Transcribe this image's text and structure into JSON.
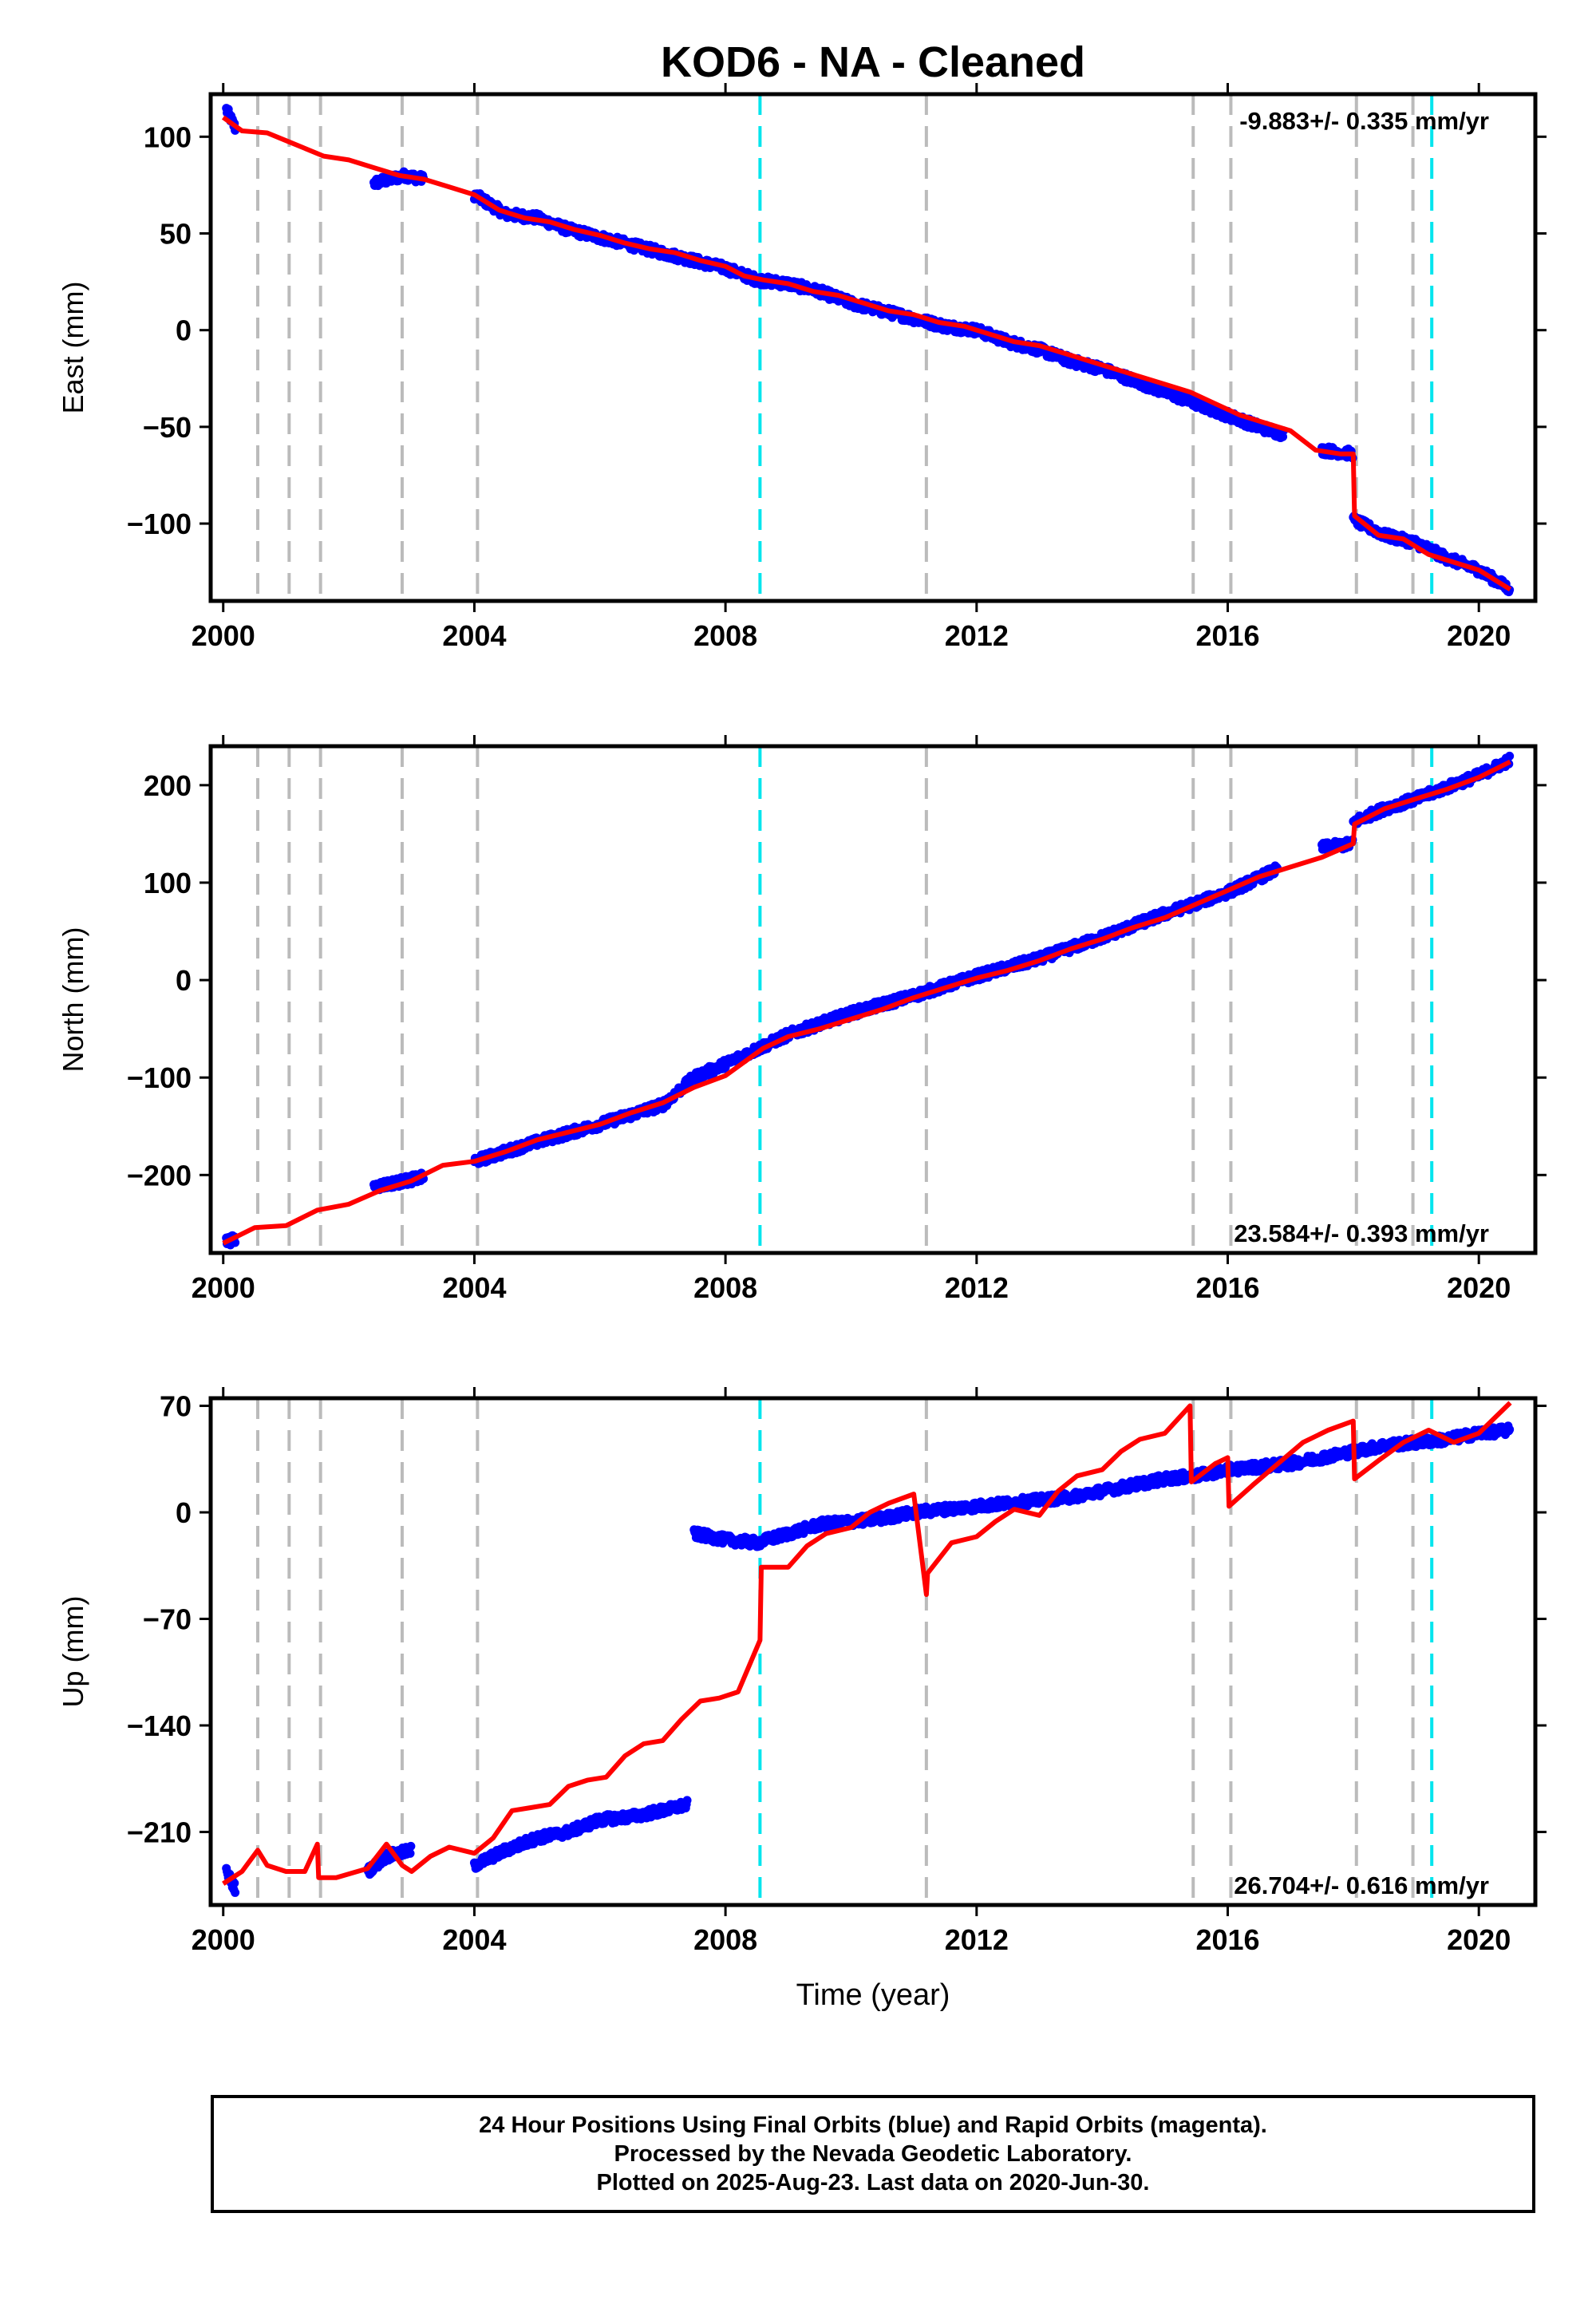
{
  "figure": {
    "title": "KOD6  - NA - Cleaned",
    "xlabel": "Time (year)"
  },
  "chart_data": [
    {
      "type": "scatter",
      "panel": "east",
      "ylabel": "East (mm)",
      "rate_label": "-9.883+/- 0.335 mm/yr",
      "xlim": [
        1999.8,
        2020.9
      ],
      "ylim": [
        -140,
        122
      ],
      "yticks": [
        -100,
        -50,
        0,
        50,
        100
      ],
      "ytick_labels": [
        "−100",
        "−50",
        "0",
        "50",
        "100"
      ],
      "xticks": [
        2000,
        2004,
        2008,
        2012,
        2016,
        2020
      ],
      "xtick_labels": [
        "2000",
        "2004",
        "2008",
        "2012",
        "2016",
        "2020"
      ],
      "series": [
        {
          "role": "observed",
          "color": "#0000ff",
          "segments": [
            {
              "x": [
                2000.05,
                2000.2
              ],
              "y": [
                114,
                104
              ]
            },
            {
              "x": [
                2002.4,
                2002.9,
                2003.2
              ],
              "y": [
                76,
                80,
                78
              ]
            },
            {
              "x": [
                2004.0,
                2004.5,
                2005.0,
                2005.5,
                2006.0,
                2006.5,
                2007.0,
                2007.5,
                2008.0,
                2008.5,
                2009.0,
                2009.5,
                2010.0,
                2010.5,
                2011.0,
                2011.5,
                2012.0,
                2012.5,
                2013.0,
                2013.5,
                2014.0,
                2014.5,
                2015.0,
                2015.5,
                2016.0,
                2016.5,
                2016.9
              ],
              "y": [
                70,
                60,
                58,
                52,
                48,
                44,
                40,
                36,
                32,
                26,
                24,
                20,
                14,
                10,
                6,
                2,
                0,
                -6,
                -10,
                -16,
                -20,
                -26,
                -32,
                -38,
                -44,
                -50,
                -54
              ]
            },
            {
              "x": [
                2017.5,
                2018.0
              ],
              "y": [
                -62,
                -64
              ]
            },
            {
              "x": [
                2018.0,
                2018.5,
                2019.0,
                2019.5,
                2020.0,
                2020.5
              ],
              "y": [
                -98,
                -106,
                -110,
                -118,
                -124,
                -134
              ]
            }
          ]
        },
        {
          "role": "model",
          "color": "#ff0000",
          "x": [
            2000.0,
            2000.3,
            2000.7,
            2001.0,
            2001.3,
            2001.6,
            2002.0,
            2002.4,
            2002.8,
            2003.2,
            2003.6,
            2004.0,
            2004.4,
            2004.8,
            2005.2,
            2005.6,
            2006.0,
            2006.4,
            2006.8,
            2007.2,
            2007.6,
            2008.0,
            2008.3,
            2008.6,
            2009.0,
            2009.4,
            2009.8,
            2010.2,
            2010.6,
            2011.0,
            2011.4,
            2011.8,
            2012.2,
            2012.6,
            2013.0,
            2013.4,
            2013.8,
            2014.2,
            2014.6,
            2015.0,
            2015.4,
            2015.8,
            2016.2,
            2016.6,
            2017.0,
            2017.4,
            2017.8,
            2018.0,
            2018.02,
            2018.4,
            2018.8,
            2019.2,
            2019.6,
            2020.0,
            2020.5
          ],
          "y": [
            110,
            103,
            102,
            98,
            94,
            90,
            88,
            84,
            80,
            78,
            74,
            70,
            62,
            58,
            56,
            52,
            49,
            45,
            42,
            40,
            36,
            33,
            28,
            26,
            24,
            20,
            18,
            14,
            10,
            8,
            4,
            2,
            -2,
            -6,
            -8,
            -12,
            -16,
            -20,
            -24,
            -28,
            -32,
            -38,
            -44,
            -48,
            -52,
            -62,
            -64,
            -64,
            -96,
            -106,
            -108,
            -116,
            -120,
            -124,
            -134
          ]
        }
      ]
    },
    {
      "type": "scatter",
      "panel": "north",
      "ylabel": "North (mm)",
      "rate_label": "23.584+/- 0.393 mm/yr",
      "xlim": [
        1999.8,
        2020.9
      ],
      "ylim": [
        -280,
        240
      ],
      "yticks": [
        -200,
        -100,
        0,
        100,
        200
      ],
      "ytick_labels": [
        "−200",
        "−100",
        "0",
        "100",
        "200"
      ],
      "xticks": [
        2000,
        2004,
        2008,
        2012,
        2016,
        2020
      ],
      "xtick_labels": [
        "2000",
        "2004",
        "2008",
        "2012",
        "2016",
        "2020"
      ],
      "series": [
        {
          "role": "observed",
          "color": "#0000ff",
          "segments": [
            {
              "x": [
                2000.05,
                2000.2
              ],
              "y": [
                -268,
                -266
              ]
            },
            {
              "x": [
                2002.4,
                2002.9,
                2003.2
              ],
              "y": [
                -212,
                -206,
                -202
              ]
            },
            {
              "x": [
                2004.0,
                2005.0,
                2006.0,
                2007.0,
                2007.5,
                2008.0,
                2009.0,
                2010.0,
                2011.0,
                2012.0,
                2013.0,
                2014.0,
                2015.0,
                2016.0,
                2016.8
              ],
              "y": [
                -186,
                -166,
                -148,
                -128,
                -100,
                -86,
                -56,
                -34,
                -16,
                4,
                22,
                44,
                68,
                90,
                114
              ]
            },
            {
              "x": [
                2017.5,
                2018.0
              ],
              "y": [
                136,
                140
              ]
            },
            {
              "x": [
                2018.0,
                2018.5,
                2019.0,
                2019.5,
                2020.0,
                2020.5
              ],
              "y": [
                162,
                176,
                186,
                198,
                210,
                226
              ]
            }
          ]
        },
        {
          "role": "model",
          "color": "#ff0000",
          "x": [
            2000.0,
            2000.5,
            2001.0,
            2001.5,
            2002.0,
            2002.5,
            2003.0,
            2003.5,
            2004.0,
            2004.5,
            2005.0,
            2005.5,
            2006.0,
            2006.5,
            2007.0,
            2007.5,
            2008.0,
            2008.6,
            2009.0,
            2009.5,
            2010.0,
            2010.5,
            2011.0,
            2011.5,
            2012.0,
            2012.5,
            2013.0,
            2013.5,
            2014.0,
            2014.5,
            2015.0,
            2015.5,
            2016.0,
            2016.5,
            2017.0,
            2017.5,
            2018.0,
            2018.02,
            2018.5,
            2019.0,
            2019.5,
            2020.0,
            2020.5
          ],
          "y": [
            -270,
            -254,
            -252,
            -236,
            -230,
            -216,
            -206,
            -190,
            -186,
            -176,
            -164,
            -156,
            -148,
            -136,
            -126,
            -110,
            -98,
            -70,
            -58,
            -50,
            -40,
            -30,
            -18,
            -8,
            2,
            10,
            20,
            32,
            42,
            54,
            64,
            78,
            92,
            106,
            116,
            126,
            140,
            160,
            176,
            186,
            196,
            208,
            224
          ]
        }
      ]
    },
    {
      "type": "scatter",
      "panel": "up",
      "ylabel": "Up (mm)",
      "rate_label": "26.704+/- 0.616 mm/yr",
      "xlim": [
        1999.8,
        2020.9
      ],
      "ylim": [
        -258,
        75
      ],
      "yticks": [
        -210,
        -140,
        -70,
        0,
        70
      ],
      "ytick_labels": [
        "−210",
        "−140",
        "−70",
        "0",
        "70"
      ],
      "xticks": [
        2000,
        2004,
        2008,
        2012,
        2016,
        2020
      ],
      "xtick_labels": [
        "2000",
        "2004",
        "2008",
        "2012",
        "2016",
        "2020"
      ],
      "series": [
        {
          "role": "observed",
          "color": "#0000ff",
          "segments": [
            {
              "x": [
                2000.05,
                2000.2
              ],
              "y": [
                -236,
                -248
              ]
            },
            {
              "x": [
                2002.3,
                2002.6,
                2003.0
              ],
              "y": [
                -236,
                -226,
                -222
              ]
            },
            {
              "x": [
                2004.0,
                2004.5,
                2005.0,
                2005.5,
                2006.0,
                2006.5,
                2007.0,
                2007.4
              ],
              "y": [
                -232,
                -222,
                -214,
                -210,
                -202,
                -200,
                -196,
                -192
              ]
            },
            {
              "x": [
                2007.5,
                2008.0,
                2008.5,
                2009.0,
                2009.5,
                2010.0,
                2010.5,
                2011.0,
                2011.5,
                2012.0,
                2012.5,
                2013.0,
                2013.5,
                2014.0,
                2014.5,
                2015.0,
                2015.5,
                2016.0,
                2016.5,
                2017.0,
                2017.5,
                2018.0,
                2018.5,
                2019.0,
                2019.5,
                2020.0,
                2020.5
              ],
              "y": [
                -14,
                -18,
                -20,
                -14,
                -8,
                -6,
                -4,
                0,
                2,
                4,
                6,
                8,
                10,
                14,
                18,
                22,
                24,
                28,
                30,
                32,
                36,
                40,
                44,
                46,
                48,
                52,
                54
              ]
            }
          ]
        },
        {
          "role": "model",
          "color": "#ff0000",
          "x": [
            2000.0,
            2000.3,
            2000.55,
            2000.7,
            2001.0,
            2001.3,
            2001.5,
            2001.52,
            2001.8,
            2002.3,
            2002.6,
            2002.85,
            2003.0,
            2003.3,
            2003.6,
            2004.0,
            2004.3,
            2004.6,
            2004.9,
            2005.2,
            2005.5,
            2005.8,
            2006.1,
            2006.4,
            2006.7,
            2007.0,
            2007.3,
            2007.6,
            2007.9,
            2008.2,
            2008.55,
            2008.57,
            2009.0,
            2009.3,
            2009.6,
            2010.0,
            2010.3,
            2010.6,
            2011.0,
            2011.2,
            2011.22,
            2011.6,
            2012.0,
            2012.3,
            2012.6,
            2013.0,
            2013.3,
            2013.6,
            2014.0,
            2014.3,
            2014.6,
            2015.0,
            2015.4,
            2015.42,
            2015.8,
            2016.0,
            2016.02,
            2016.4,
            2016.8,
            2017.2,
            2017.6,
            2018.0,
            2018.02,
            2018.4,
            2018.8,
            2019.2,
            2019.6,
            2020.0,
            2020.5
          ],
          "y": [
            -244,
            -236,
            -222,
            -232,
            -236,
            -236,
            -218,
            -240,
            -240,
            -234,
            -218,
            -232,
            -236,
            -226,
            -220,
            -224,
            -214,
            -196,
            -194,
            -192,
            -180,
            -176,
            -174,
            -160,
            -152,
            -150,
            -136,
            -124,
            -122,
            -118,
            -84,
            -36,
            -36,
            -22,
            -14,
            -10,
            0,
            6,
            12,
            -54,
            -40,
            -20,
            -16,
            -6,
            2,
            -2,
            14,
            24,
            28,
            40,
            48,
            52,
            70,
            20,
            32,
            36,
            4,
            18,
            32,
            46,
            54,
            60,
            22,
            34,
            46,
            54,
            46,
            52,
            72
          ]
        }
      ]
    }
  ],
  "vlines": [
    {
      "kind": "dashed-gray",
      "color": "#bbbbbb",
      "x": [
        2000.55,
        2001.05,
        2001.55,
        2002.85,
        2004.05,
        2011.2,
        2015.45,
        2016.05,
        2018.05,
        2018.95
      ]
    },
    {
      "kind": "dashed-cyan",
      "color": "#00e5ee",
      "x": [
        2008.55,
        2019.25
      ]
    }
  ],
  "footer": {
    "line1": "24 Hour Positions Using Final Orbits (blue) and Rapid Orbits (magenta).",
    "line2": "Processed by the Nevada Geodetic Laboratory.",
    "line3": "Plotted on 2025-Aug-23. Last data on 2020-Jun-30."
  }
}
